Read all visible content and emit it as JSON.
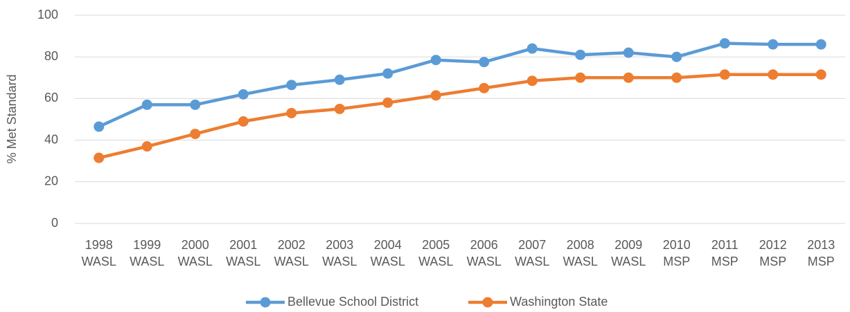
{
  "chart_data": {
    "type": "line",
    "y_label": "% Met Standard",
    "categories": [
      [
        "1998",
        "WASL"
      ],
      [
        "1999",
        "WASL"
      ],
      [
        "2000",
        "WASL"
      ],
      [
        "2001",
        "WASL"
      ],
      [
        "2002",
        "WASL"
      ],
      [
        "2003",
        "WASL"
      ],
      [
        "2004",
        "WASL"
      ],
      [
        "2005",
        "WASL"
      ],
      [
        "2006",
        "WASL"
      ],
      [
        "2007",
        "WASL"
      ],
      [
        "2008",
        "WASL"
      ],
      [
        "2009",
        "WASL"
      ],
      [
        "2010",
        "MSP"
      ],
      [
        "2011",
        "MSP"
      ],
      [
        "2012",
        "MSP"
      ],
      [
        "2013",
        "MSP"
      ]
    ],
    "series": [
      {
        "name": "Bellevue School District",
        "color": "#5b9bd5",
        "values": [
          46.5,
          57,
          57,
          62,
          66.5,
          69,
          72,
          78.5,
          77.5,
          84,
          81,
          82,
          80,
          86.5,
          86,
          86
        ]
      },
      {
        "name": "Washington State",
        "color": "#ed7d31",
        "values": [
          31.5,
          37,
          43,
          49,
          53,
          55,
          58,
          61.5,
          65,
          68.5,
          70,
          70,
          70,
          71.5,
          71.5,
          71.5
        ]
      }
    ],
    "ylim": [
      0,
      100
    ],
    "yticks": [
      0,
      20,
      40,
      60,
      80,
      100
    ],
    "grid": true,
    "legend": "bottom"
  }
}
